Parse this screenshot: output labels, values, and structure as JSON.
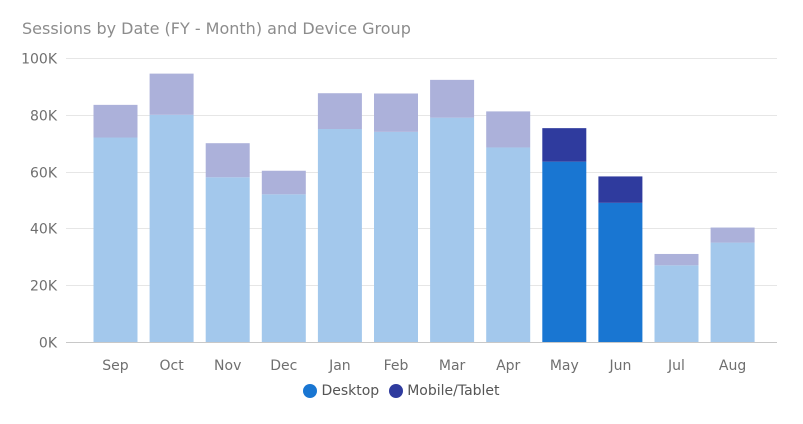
{
  "chart_data": {
    "type": "bar",
    "stacked": true,
    "title": "Sessions by Date (FY - Month) and Device Group",
    "xlabel": "",
    "ylabel": "",
    "categories": [
      "Sep",
      "Oct",
      "Nov",
      "Dec",
      "Jan",
      "Feb",
      "Mar",
      "Apr",
      "May",
      "Jun",
      "Jul",
      "Aug"
    ],
    "series": [
      {
        "name": "Desktop",
        "color": "#1976d2",
        "faded_color": "#a3c8ec",
        "values": [
          72000,
          80000,
          58000,
          52000,
          75000,
          74000,
          79000,
          68500,
          63500,
          49000,
          27000,
          35000
        ]
      },
      {
        "name": "Mobile/Tablet",
        "color": "#2f3b9e",
        "faded_color": "#acb1da",
        "values": [
          11500,
          14500,
          12000,
          8300,
          12600,
          13500,
          13300,
          12700,
          11800,
          9300,
          4000,
          5300
        ]
      }
    ],
    "highlighted": [
      "May",
      "Jun"
    ],
    "ylim": [
      0,
      100000
    ],
    "yticks": [
      0,
      20000,
      40000,
      60000,
      80000,
      100000
    ],
    "ytick_labels": [
      "0K",
      "20K",
      "40K",
      "60K",
      "80K",
      "100K"
    ],
    "grid": true,
    "legend_position": "bottom-center"
  }
}
